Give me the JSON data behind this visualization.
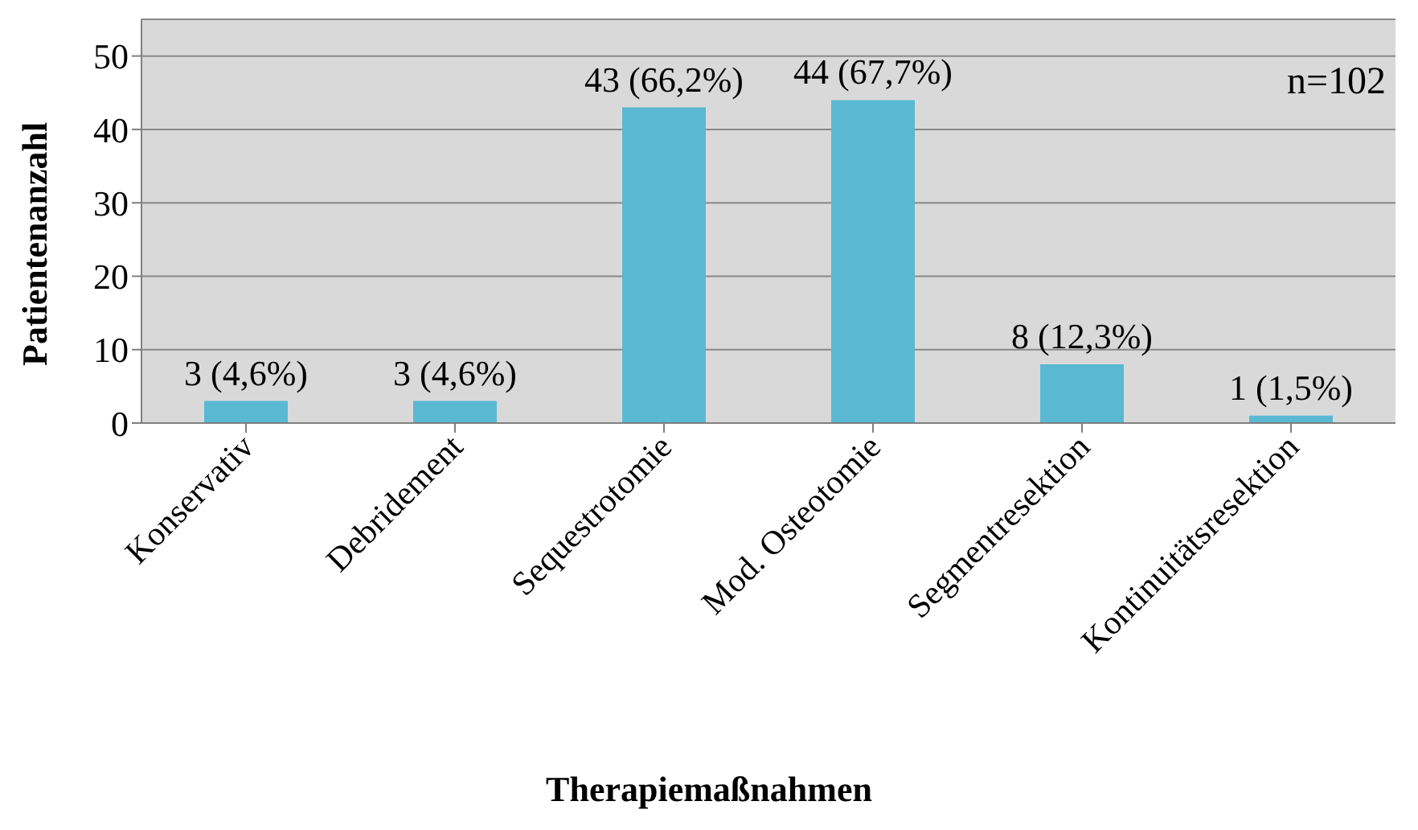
{
  "chart_data": {
    "type": "bar",
    "xlabel": "Therapiemaßnahmen",
    "ylabel": "Patientenanzahl",
    "categories": [
      "Konservativ",
      "Debridement",
      "Sequestrotomie",
      "Mod. Osteotomie",
      "Segmentresektion",
      "Kontinuitätsresektion"
    ],
    "values": [
      3,
      3,
      43,
      44,
      8,
      1
    ],
    "value_labels": [
      "3 (4,6%)",
      "3 (4,6%)",
      "43 (66,2%)",
      "44 (67,7%)",
      "8 (12,3%)",
      "1 (1,5%)"
    ],
    "color": "#5bb8d2",
    "ylim": [
      0,
      55
    ],
    "yticks": [
      0,
      10,
      20,
      30,
      40,
      50
    ],
    "grid": "y",
    "annotations": [
      "n=102"
    ]
  }
}
